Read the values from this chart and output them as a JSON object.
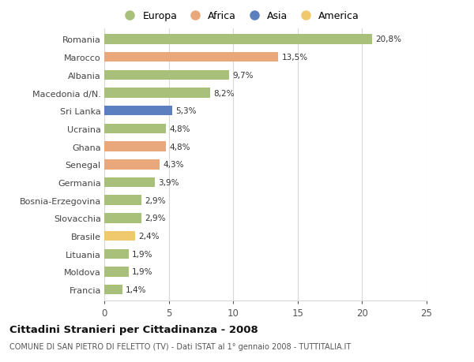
{
  "countries": [
    "Romania",
    "Marocco",
    "Albania",
    "Macedonia d/N.",
    "Sri Lanka",
    "Ucraina",
    "Ghana",
    "Senegal",
    "Germania",
    "Bosnia-Erzegovina",
    "Slovacchia",
    "Brasile",
    "Lituania",
    "Moldova",
    "Francia"
  ],
  "values": [
    20.8,
    13.5,
    9.7,
    8.2,
    5.3,
    4.8,
    4.8,
    4.3,
    3.9,
    2.9,
    2.9,
    2.4,
    1.9,
    1.9,
    1.4
  ],
  "labels": [
    "20,8%",
    "13,5%",
    "9,7%",
    "8,2%",
    "5,3%",
    "4,8%",
    "4,8%",
    "4,3%",
    "3,9%",
    "2,9%",
    "2,9%",
    "2,4%",
    "1,9%",
    "1,9%",
    "1,4%"
  ],
  "continents": [
    "Europa",
    "Africa",
    "Europa",
    "Europa",
    "Asia",
    "Europa",
    "Africa",
    "Africa",
    "Europa",
    "Europa",
    "Europa",
    "America",
    "Europa",
    "Europa",
    "Europa"
  ],
  "colors": {
    "Europa": "#a8c07a",
    "Africa": "#e8a87c",
    "Asia": "#5b7fbf",
    "America": "#f0c86e"
  },
  "legend_order": [
    "Europa",
    "Africa",
    "Asia",
    "America"
  ],
  "title": "Cittadini Stranieri per Cittadinanza - 2008",
  "subtitle": "COMUNE DI SAN PIETRO DI FELETTO (TV) - Dati ISTAT al 1° gennaio 2008 - TUTTITALIA.IT",
  "xlim": [
    0,
    25
  ],
  "xticks": [
    0,
    5,
    10,
    15,
    20,
    25
  ],
  "background_color": "#ffffff",
  "grid_color": "#d8d8d8"
}
